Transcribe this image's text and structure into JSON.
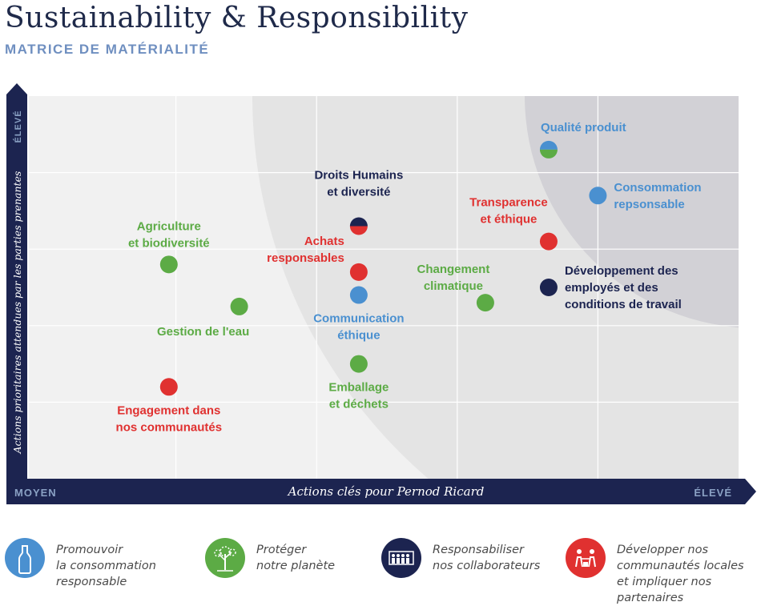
{
  "header": {
    "title": "Sustainability & Responsibility",
    "subtitle": "MATRICE DE MATÉRIALITÉ"
  },
  "colors": {
    "blue": "#4a90d0",
    "green": "#5cab45",
    "navy": "#1c2450",
    "red": "#e03130",
    "axis": "#1c2450",
    "axis_label_text": "#8aa1c4"
  },
  "chart_data": {
    "type": "scatter",
    "title": "MATRICE DE MATÉRIALITÉ",
    "xlabel": "Actions clés pour Pernod Ricard",
    "ylabel": "Actions prioritaires attendues par les parties prenantes",
    "x_axis_low_label": "MOYEN",
    "x_axis_high_label": "ÉLEVÉ",
    "y_axis_high_label": "ÉLEVÉ",
    "xlim": [
      0,
      5
    ],
    "ylim": [
      0,
      5
    ],
    "grid": true,
    "points": [
      {
        "label_lines": [
          "Qualité produit"
        ],
        "x": 3.65,
        "y": 4.3,
        "colors": [
          "blue",
          "green"
        ],
        "label_pos": "above-right"
      },
      {
        "label_lines": [
          "Consommation",
          "repsonsable"
        ],
        "x": 4.0,
        "y": 3.7,
        "colors": [
          "blue"
        ],
        "label_pos": "right"
      },
      {
        "label_lines": [
          "Droits Humains",
          "et diversité"
        ],
        "x": 2.3,
        "y": 3.3,
        "colors": [
          "navy",
          "red"
        ],
        "label_pos": "above"
      },
      {
        "label_lines": [
          "Transparence",
          "et éthique"
        ],
        "x": 3.65,
        "y": 3.1,
        "colors": [
          "red"
        ],
        "label_pos": "above-left"
      },
      {
        "label_lines": [
          "Agriculture",
          "et biodiversité"
        ],
        "x": 0.95,
        "y": 2.8,
        "colors": [
          "green"
        ],
        "label_pos": "above"
      },
      {
        "label_lines": [
          "Achats",
          "responsables"
        ],
        "x": 2.3,
        "y": 2.7,
        "colors": [
          "red"
        ],
        "label_pos": "above-left"
      },
      {
        "label_lines": [
          "Développement des",
          "employés et des",
          "conditions de travail"
        ],
        "x": 3.65,
        "y": 2.5,
        "colors": [
          "navy"
        ],
        "label_pos": "right"
      },
      {
        "label_lines": [
          "Communication",
          "éthique"
        ],
        "x": 2.3,
        "y": 2.4,
        "colors": [
          "blue"
        ],
        "label_pos": "below"
      },
      {
        "label_lines": [
          "Changement",
          "climatique"
        ],
        "x": 3.2,
        "y": 2.3,
        "colors": [
          "green"
        ],
        "label_pos": "above-left"
      },
      {
        "label_lines": [
          "Gestion de l'eau"
        ],
        "x": 1.45,
        "y": 2.25,
        "colors": [
          "green"
        ],
        "label_pos": "below"
      },
      {
        "label_lines": [
          "Emballage",
          "et déchets"
        ],
        "x": 2.3,
        "y": 1.5,
        "colors": [
          "green"
        ],
        "label_pos": "below"
      },
      {
        "label_lines": [
          "Engagement dans",
          "nos communautés"
        ],
        "x": 0.95,
        "y": 1.2,
        "colors": [
          "red"
        ],
        "label_pos": "below"
      }
    ]
  },
  "legend": [
    {
      "icon": "bottle-icon",
      "color": "blue",
      "lines": [
        "Promouvoir",
        "la consommation",
        "responsable"
      ]
    },
    {
      "icon": "tree-icon",
      "color": "green",
      "lines": [
        "Protéger",
        "notre planète"
      ]
    },
    {
      "icon": "people-group-icon",
      "color": "navy",
      "lines": [
        "Responsabiliser",
        "nos collaborateurs"
      ]
    },
    {
      "icon": "community-icon",
      "color": "red",
      "lines": [
        "Développer nos",
        "communautés locales",
        "et impliquer nos",
        "partenaires"
      ]
    }
  ]
}
